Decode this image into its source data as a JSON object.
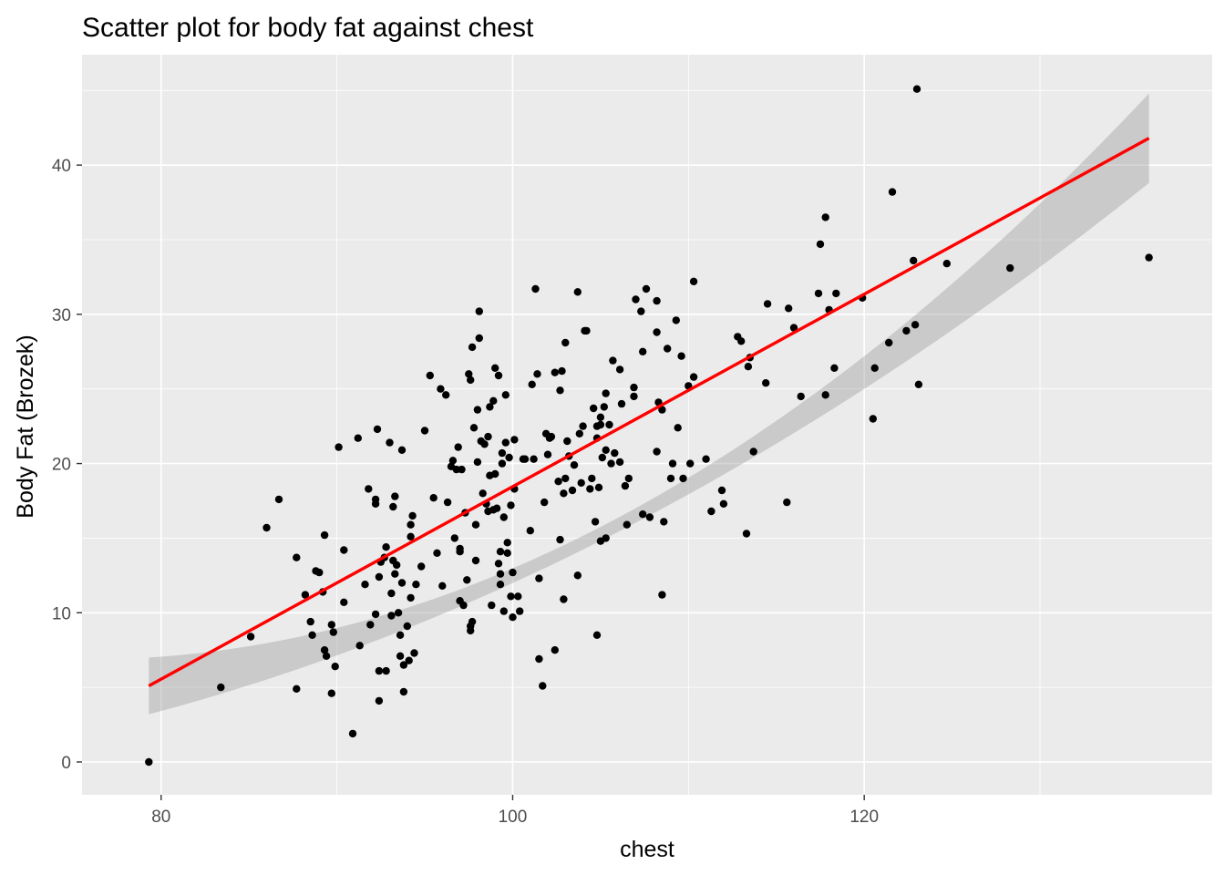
{
  "chart_data": {
    "type": "scatter",
    "title": "Scatter plot for body fat against chest",
    "xlabel": "chest",
    "ylabel": "Body Fat (Brozek)",
    "xlim": [
      75.5,
      139.8
    ],
    "ylim": [
      -2.2,
      47.4
    ],
    "x_ticks": [
      80,
      100,
      120
    ],
    "y_ticks": [
      0,
      10,
      20,
      30,
      40
    ],
    "grid": true,
    "colors": {
      "panel": "#ebebeb",
      "grid_major": "#ffffff",
      "points": "#000000",
      "fit_line": "#ff0000",
      "confidence_band": "#999999"
    },
    "fit": {
      "method": "linear",
      "x_range": [
        79.3,
        136.2
      ],
      "y_at_x_min": 5.1,
      "y_at_x_max": 41.8,
      "band_lower_at_x_min": 3.2,
      "band_upper_at_x_min": 7.0,
      "band_lower_at_x_mid": 16.5,
      "band_upper_at_x_mid": 17.5,
      "band_lower_at_x_max": 38.8,
      "band_upper_at_x_max": 44.8
    },
    "points": [
      [
        79.3,
        0.0
      ],
      [
        83.4,
        5.0
      ],
      [
        85.1,
        8.4
      ],
      [
        86.0,
        15.7
      ],
      [
        86.7,
        17.6
      ],
      [
        87.7,
        13.7
      ],
      [
        87.7,
        4.9
      ],
      [
        88.2,
        11.2
      ],
      [
        88.5,
        9.4
      ],
      [
        88.6,
        8.5
      ],
      [
        88.8,
        12.8
      ],
      [
        89.0,
        12.7
      ],
      [
        89.2,
        11.4
      ],
      [
        89.3,
        15.2
      ],
      [
        89.3,
        7.5
      ],
      [
        89.4,
        7.1
      ],
      [
        89.7,
        9.2
      ],
      [
        89.7,
        4.6
      ],
      [
        89.8,
        8.7
      ],
      [
        89.9,
        6.4
      ],
      [
        90.1,
        21.1
      ],
      [
        90.4,
        14.2
      ],
      [
        90.4,
        10.7
      ],
      [
        90.9,
        1.9
      ],
      [
        91.2,
        21.7
      ],
      [
        91.3,
        7.8
      ],
      [
        91.6,
        11.9
      ],
      [
        91.8,
        18.3
      ],
      [
        91.9,
        9.2
      ],
      [
        92.2,
        17.6
      ],
      [
        92.2,
        17.3
      ],
      [
        92.2,
        9.9
      ],
      [
        92.3,
        22.3
      ],
      [
        92.4,
        12.4
      ],
      [
        92.4,
        6.1
      ],
      [
        92.4,
        4.1
      ],
      [
        92.5,
        13.4
      ],
      [
        92.7,
        13.7
      ],
      [
        92.8,
        14.4
      ],
      [
        92.8,
        6.1
      ],
      [
        93.0,
        21.4
      ],
      [
        93.1,
        11.3
      ],
      [
        93.1,
        9.8
      ],
      [
        93.2,
        13.5
      ],
      [
        93.2,
        17.1
      ],
      [
        93.3,
        17.8
      ],
      [
        93.3,
        12.6
      ],
      [
        93.4,
        13.2
      ],
      [
        93.5,
        10.0
      ],
      [
        93.6,
        8.5
      ],
      [
        93.6,
        7.1
      ],
      [
        93.7,
        20.9
      ],
      [
        93.7,
        12.0
      ],
      [
        93.8,
        6.5
      ],
      [
        93.8,
        4.7
      ],
      [
        94.0,
        9.1
      ],
      [
        94.1,
        6.8
      ],
      [
        94.2,
        15.9
      ],
      [
        94.2,
        15.1
      ],
      [
        94.2,
        11.0
      ],
      [
        94.3,
        16.5
      ],
      [
        94.4,
        7.3
      ],
      [
        94.5,
        11.9
      ],
      [
        94.8,
        13.1
      ],
      [
        95.0,
        22.2
      ],
      [
        95.3,
        25.9
      ],
      [
        95.5,
        17.7
      ],
      [
        95.7,
        14.0
      ],
      [
        95.9,
        25.0
      ],
      [
        96.0,
        11.8
      ],
      [
        96.2,
        24.6
      ],
      [
        96.3,
        17.4
      ],
      [
        96.5,
        19.8
      ],
      [
        96.6,
        20.2
      ],
      [
        96.7,
        15.0
      ],
      [
        96.8,
        19.6
      ],
      [
        96.9,
        21.1
      ],
      [
        97.0,
        14.3
      ],
      [
        97.1,
        19.6
      ],
      [
        97.0,
        14.1
      ],
      [
        97.0,
        10.8
      ],
      [
        97.2,
        10.5
      ],
      [
        97.3,
        16.7
      ],
      [
        97.4,
        12.2
      ],
      [
        97.5,
        26.0
      ],
      [
        97.6,
        25.6
      ],
      [
        97.6,
        9.1
      ],
      [
        97.6,
        8.8
      ],
      [
        97.7,
        9.4
      ],
      [
        97.7,
        27.8
      ],
      [
        97.8,
        22.4
      ],
      [
        97.9,
        13.5
      ],
      [
        97.9,
        15.9
      ],
      [
        98.0,
        20.1
      ],
      [
        98.0,
        23.6
      ],
      [
        98.1,
        30.2
      ],
      [
        98.1,
        28.4
      ],
      [
        98.2,
        21.5
      ],
      [
        98.3,
        18.0
      ],
      [
        98.4,
        21.3
      ],
      [
        98.5,
        17.3
      ],
      [
        98.6,
        16.8
      ],
      [
        98.6,
        21.8
      ],
      [
        98.7,
        23.8
      ],
      [
        98.7,
        19.2
      ],
      [
        98.8,
        10.5
      ],
      [
        98.9,
        24.2
      ],
      [
        98.9,
        16.9
      ],
      [
        99.0,
        26.4
      ],
      [
        99.0,
        19.3
      ],
      [
        99.1,
        17.0
      ],
      [
        99.2,
        25.9
      ],
      [
        99.2,
        13.3
      ],
      [
        99.3,
        12.6
      ],
      [
        99.3,
        11.9
      ],
      [
        99.3,
        14.1
      ],
      [
        99.4,
        20.0
      ],
      [
        99.4,
        20.7
      ],
      [
        99.5,
        16.4
      ],
      [
        99.5,
        10.1
      ],
      [
        99.6,
        21.4
      ],
      [
        99.6,
        24.6
      ],
      [
        99.7,
        14.7
      ],
      [
        99.7,
        14.0
      ],
      [
        99.8,
        20.4
      ],
      [
        99.9,
        11.1
      ],
      [
        99.9,
        17.2
      ],
      [
        100.0,
        12.7
      ],
      [
        100.0,
        9.7
      ],
      [
        100.1,
        21.6
      ],
      [
        100.1,
        18.3
      ],
      [
        100.3,
        11.1
      ],
      [
        100.4,
        10.1
      ],
      [
        100.6,
        20.3
      ],
      [
        100.7,
        20.3
      ],
      [
        101.0,
        15.5
      ],
      [
        101.1,
        25.3
      ],
      [
        101.2,
        20.3
      ],
      [
        101.3,
        31.7
      ],
      [
        101.4,
        26.0
      ],
      [
        101.5,
        12.3
      ],
      [
        101.5,
        6.9
      ],
      [
        101.7,
        5.1
      ],
      [
        101.8,
        17.4
      ],
      [
        101.9,
        22.0
      ],
      [
        102.0,
        20.6
      ],
      [
        102.1,
        21.7
      ],
      [
        102.2,
        21.8
      ],
      [
        102.4,
        26.1
      ],
      [
        102.4,
        7.5
      ],
      [
        102.6,
        18.8
      ],
      [
        102.7,
        24.9
      ],
      [
        102.7,
        14.9
      ],
      [
        102.8,
        26.2
      ],
      [
        102.9,
        18.0
      ],
      [
        102.9,
        10.9
      ],
      [
        103.0,
        19.0
      ],
      [
        103.0,
        28.1
      ],
      [
        103.1,
        21.5
      ],
      [
        103.2,
        20.5
      ],
      [
        103.4,
        18.2
      ],
      [
        103.5,
        19.9
      ],
      [
        103.7,
        31.5
      ],
      [
        103.7,
        12.5
      ],
      [
        103.8,
        22.0
      ],
      [
        103.9,
        18.7
      ],
      [
        104.0,
        22.5
      ],
      [
        104.1,
        28.9
      ],
      [
        104.2,
        28.9
      ],
      [
        104.4,
        18.3
      ],
      [
        104.5,
        19.0
      ],
      [
        104.6,
        23.7
      ],
      [
        104.7,
        16.1
      ],
      [
        104.8,
        22.5
      ],
      [
        104.8,
        21.7
      ],
      [
        104.8,
        8.5
      ],
      [
        104.9,
        18.4
      ],
      [
        105.0,
        23.1
      ],
      [
        105.0,
        22.6
      ],
      [
        105.0,
        14.8
      ],
      [
        105.1,
        20.4
      ],
      [
        105.2,
        23.8
      ],
      [
        105.3,
        24.7
      ],
      [
        105.3,
        20.9
      ],
      [
        105.3,
        15.0
      ],
      [
        105.5,
        22.6
      ],
      [
        105.6,
        20.0
      ],
      [
        105.7,
        26.9
      ],
      [
        105.8,
        20.7
      ],
      [
        106.1,
        20.1
      ],
      [
        106.1,
        26.3
      ],
      [
        106.2,
        24.0
      ],
      [
        106.4,
        18.5
      ],
      [
        106.5,
        15.9
      ],
      [
        106.6,
        19.0
      ],
      [
        106.9,
        24.5
      ],
      [
        106.9,
        25.1
      ],
      [
        107.0,
        31.0
      ],
      [
        107.3,
        30.2
      ],
      [
        107.4,
        27.5
      ],
      [
        107.4,
        16.6
      ],
      [
        107.6,
        31.7
      ],
      [
        107.8,
        16.4
      ],
      [
        108.2,
        30.9
      ],
      [
        108.2,
        28.8
      ],
      [
        108.2,
        20.8
      ],
      [
        108.3,
        24.1
      ],
      [
        108.5,
        23.6
      ],
      [
        108.5,
        11.2
      ],
      [
        108.6,
        16.1
      ],
      [
        108.8,
        27.7
      ],
      [
        109.0,
        19.0
      ],
      [
        109.1,
        20.0
      ],
      [
        109.3,
        29.6
      ],
      [
        109.4,
        22.4
      ],
      [
        109.6,
        27.2
      ],
      [
        109.7,
        19.0
      ],
      [
        110.0,
        25.2
      ],
      [
        110.1,
        20.0
      ],
      [
        110.3,
        32.2
      ],
      [
        110.3,
        25.8
      ],
      [
        111.0,
        20.3
      ],
      [
        111.3,
        16.8
      ],
      [
        111.9,
        18.2
      ],
      [
        112.0,
        17.3
      ],
      [
        112.8,
        28.5
      ],
      [
        113.0,
        28.2
      ],
      [
        113.3,
        15.3
      ],
      [
        113.4,
        26.5
      ],
      [
        113.5,
        27.1
      ],
      [
        113.7,
        20.8
      ],
      [
        114.4,
        25.4
      ],
      [
        114.5,
        30.7
      ],
      [
        115.6,
        17.4
      ],
      [
        115.7,
        30.4
      ],
      [
        116.0,
        29.1
      ],
      [
        116.4,
        24.5
      ],
      [
        117.4,
        31.4
      ],
      [
        117.5,
        34.7
      ],
      [
        117.8,
        36.5
      ],
      [
        117.8,
        24.6
      ],
      [
        118.0,
        30.3
      ],
      [
        118.3,
        26.4
      ],
      [
        118.4,
        31.4
      ],
      [
        119.9,
        31.1
      ],
      [
        120.5,
        23.0
      ],
      [
        120.6,
        26.4
      ],
      [
        121.4,
        28.1
      ],
      [
        121.6,
        38.2
      ],
      [
        122.4,
        28.9
      ],
      [
        122.8,
        33.6
      ],
      [
        122.9,
        29.3
      ],
      [
        123.0,
        45.1
      ],
      [
        123.1,
        25.3
      ],
      [
        124.7,
        33.4
      ],
      [
        128.3,
        33.1
      ],
      [
        136.2,
        33.8
      ]
    ]
  }
}
